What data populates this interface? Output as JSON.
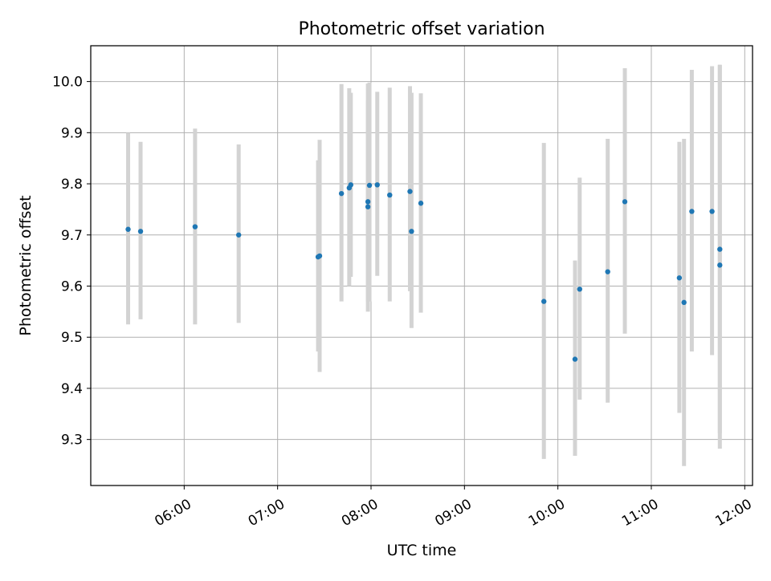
{
  "chart_data": {
    "type": "scatter",
    "title": "Photometric offset variation",
    "xlabel": "UTC time",
    "ylabel": "Photometric offset",
    "grid": true,
    "xlim": [
      "05:00",
      "12:05"
    ],
    "ylim": [
      9.21,
      10.07
    ],
    "x_ticks": [
      "06:00",
      "07:00",
      "08:00",
      "09:00",
      "10:00",
      "11:00",
      "12:00"
    ],
    "y_ticks": [
      "9.3",
      "9.4",
      "9.5",
      "9.6",
      "9.7",
      "9.8",
      "9.9",
      "10.0"
    ],
    "colors": {
      "points": "#1f77b4",
      "error_bars": "#d3d3d3",
      "grid": "#b0b0b0"
    },
    "series": [
      {
        "x": [
          "05:24",
          "05:32",
          "06:07",
          "06:35",
          "07:26",
          "07:27",
          "07:41",
          "07:46",
          "07:47",
          "07:58",
          "07:58",
          "07:59",
          "08:04",
          "08:12",
          "08:25",
          "08:26",
          "08:32",
          "09:51",
          "10:11",
          "10:14",
          "10:32",
          "10:43",
          "11:18",
          "11:21",
          "11:26",
          "11:39",
          "11:44",
          "11:44"
        ],
        "y": [
          9.711,
          9.707,
          9.716,
          9.7,
          9.657,
          9.659,
          9.781,
          9.792,
          9.798,
          9.755,
          9.765,
          9.797,
          9.798,
          9.778,
          9.785,
          9.707,
          9.762,
          9.57,
          9.457,
          9.594,
          9.628,
          9.765,
          9.616,
          9.568,
          9.746,
          9.746,
          9.641,
          9.672
        ],
        "y_low": [
          9.525,
          9.535,
          9.525,
          9.528,
          9.472,
          9.432,
          9.57,
          9.6,
          9.618,
          9.55,
          9.57,
          9.57,
          9.62,
          9.57,
          9.59,
          9.518,
          9.548,
          9.262,
          9.268,
          9.378,
          9.372,
          9.507,
          9.352,
          9.248,
          9.472,
          9.465,
          9.282,
          9.312
        ],
        "y_high": [
          9.9,
          9.882,
          9.908,
          9.877,
          9.846,
          9.886,
          9.995,
          9.987,
          9.978,
          9.962,
          9.996,
          9.998,
          9.98,
          9.988,
          9.991,
          9.978,
          9.977,
          9.88,
          9.65,
          9.812,
          9.888,
          10.026,
          9.882,
          9.888,
          10.023,
          10.03,
          10.032,
          10.033
        ]
      }
    ]
  }
}
